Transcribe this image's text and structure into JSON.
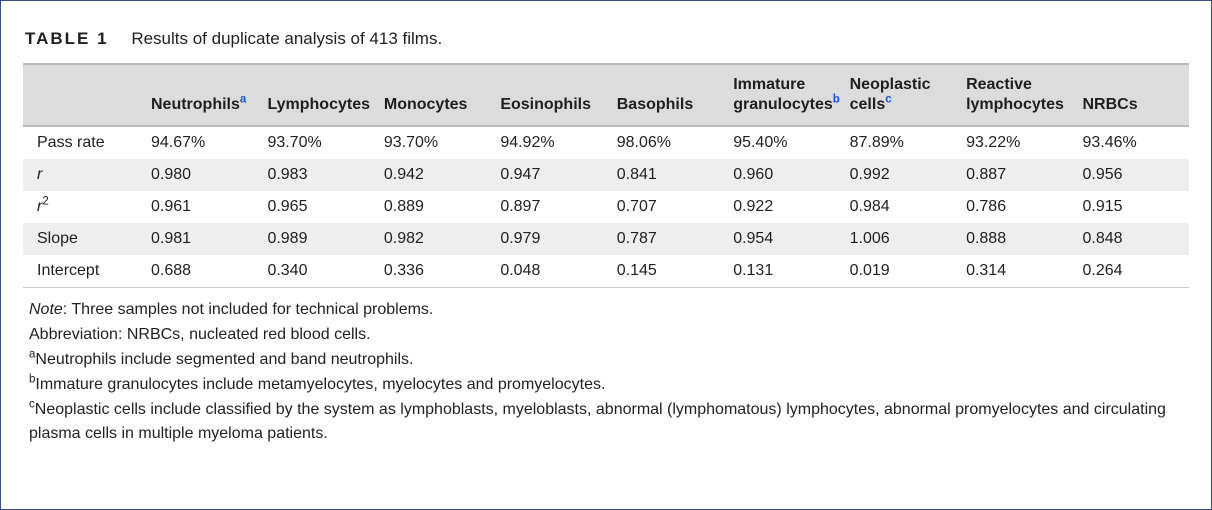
{
  "title": {
    "label": "TABLE 1",
    "caption": "Results of duplicate analysis of 413 films."
  },
  "columns": [
    {
      "label": "Neutrophils",
      "sup": "a"
    },
    {
      "label": "Lymphocytes"
    },
    {
      "label": "Monocytes"
    },
    {
      "label": "Eosinophils"
    },
    {
      "label": "Basophils"
    },
    {
      "label": "Immature granulocytes",
      "sup": "b"
    },
    {
      "label": "Neoplastic cells",
      "sup": "c"
    },
    {
      "label": "Reactive lymphocytes"
    },
    {
      "label": "NRBCs"
    }
  ],
  "rows": [
    {
      "label": "Pass rate",
      "cells": [
        "94.67%",
        "93.70%",
        "93.70%",
        "94.92%",
        "98.06%",
        "95.40%",
        "87.89%",
        "93.22%",
        "93.46%"
      ]
    },
    {
      "label": "r",
      "label_html": "<span class=\"r-italic\">r</span>",
      "cells": [
        "0.980",
        "0.983",
        "0.942",
        "0.947",
        "0.841",
        "0.960",
        "0.992",
        "0.887",
        "0.956"
      ]
    },
    {
      "label": "r2",
      "label_html": "<span class=\"r-italic\">r</span><span class=\"sup\">2</span>",
      "cells": [
        "0.961",
        "0.965",
        "0.889",
        "0.897",
        "0.707",
        "0.922",
        "0.984",
        "0.786",
        "0.915"
      ]
    },
    {
      "label": "Slope",
      "cells": [
        "0.981",
        "0.989",
        "0.982",
        "0.979",
        "0.787",
        "0.954",
        "1.006",
        "0.888",
        "0.848"
      ]
    },
    {
      "label": "Intercept",
      "cells": [
        "0.688",
        "0.340",
        "0.336",
        "0.048",
        "0.145",
        "0.131",
        "0.019",
        "0.314",
        "0.264"
      ]
    }
  ],
  "notes": {
    "note_lead": "Note",
    "note_body": ": Three samples not included for technical problems.",
    "abbrev": "Abbreviation: NRBCs, nucleated red blood cells.",
    "fn_a_sup": "a",
    "fn_a": "Neutrophils include segmented and band neutrophils.",
    "fn_b_sup": "b",
    "fn_b": "Immature granulocytes include metamyelocytes, myelocytes and promyelocytes.",
    "fn_c_sup": "c",
    "fn_c": "Neoplastic cells include classified by the system as lymphoblasts, myeloblasts, abnormal (lymphomatous) lymphocytes, abnormal promyelocytes and circulating plasma cells in multiple myeloma patients."
  },
  "style": {
    "header_bg": "#dcdcdc",
    "row_alt_bg": "#eeeeee",
    "border_color": "#b9b9b9",
    "sup_link_color": "#1557d6",
    "font_family": "Segoe UI, Helvetica Neue, Arial, sans-serif",
    "base_font_size_pt": 12
  }
}
